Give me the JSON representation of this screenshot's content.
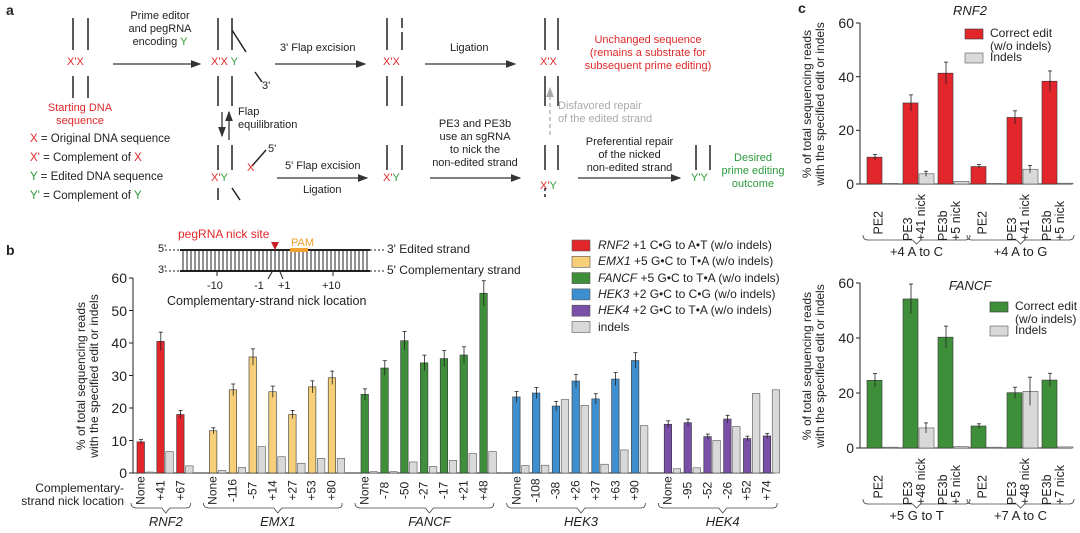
{
  "panel_a": {
    "label": "a",
    "start_label": "Starting DNA\nsequence",
    "step1": "Prime editor\nand pegRNA\nencoding",
    "step1_y": "Y",
    "flap3": "3' Flap excision",
    "three_prime": "3'",
    "five_prime": "5'",
    "ligation": "Ligation",
    "unchanged": "Unchanged sequence\n(remains a substrate for\nsubsequent prime editing)",
    "equilibration": "Flap\nequilibration",
    "disfavored": "Disfavored repair\nof the edited strand",
    "flap5": "5' Flap excision",
    "ligation2": "Ligation",
    "pe3_text": "PE3 and PE3b\nuse an sgRNA\nto nick the\nnon-edited strand",
    "preferential": "Preferential repair\nof the nicked\nnon-edited strand",
    "desired": "Desired\nprime editing\noutcome",
    "letters": {
      "x": "X",
      "xp": "X'",
      "y": "Y",
      "yp": "Y'"
    },
    "legend": [
      {
        "sym": "X",
        "text": " = Original DNA sequence"
      },
      {
        "sym": "X'",
        "text": " = Complement of ",
        "ref": "X"
      },
      {
        "sym": "Y",
        "text": " = Edited DNA sequence"
      },
      {
        "sym": "Y'",
        "text": " = Complement of ",
        "ref": "Y"
      }
    ]
  },
  "panel_b": {
    "label": "b",
    "nick_site": "pegRNA nick site",
    "pam": "PAM",
    "edited_strand": "3' Edited strand",
    "comp_strand": "5' Complementary strand",
    "five": "5'",
    "three": "3'",
    "ticks": [
      "-10",
      "-1",
      "+1",
      "+10"
    ],
    "nick_axis": "Complementary-strand nick location",
    "row_label": "Complementary-\nstrand nick location"
  },
  "panel_c": {
    "label": "c"
  },
  "colors": {
    "RNF2": "#e3262b",
    "EMX1": "#f7cf78",
    "FANCF": "#3f8f3a",
    "HEK3": "#3d8fd0",
    "HEK4": "#7a4fa8",
    "indels": "#d9d9d9"
  },
  "chart_data": [
    {
      "type": "bar",
      "title": "",
      "ylabel": "% of total sequencing reads\nwith the specified edit or indels",
      "ylim": [
        0,
        60
      ],
      "yticks": [
        "0",
        "10",
        "20",
        "30",
        "40",
        "50",
        "60"
      ],
      "legend": [
        {
          "gene": "RNF2",
          "text": " +1 C•G to A•T (w/o indels)"
        },
        {
          "gene": "EMX1",
          "text": " +5 G•C to T•A (w/o indels)"
        },
        {
          "gene": "FANCF",
          "text": " +5 G•C to T•A (w/o indels)"
        },
        {
          "gene": "HEK3",
          "text": " +2 G•C to C•G (w/o indels)"
        },
        {
          "gene": "HEK4",
          "text": " +2 G•C to T•A (w/o indels)"
        },
        {
          "gene": "indels",
          "text": "indels"
        }
      ],
      "groups": [
        {
          "gene": "RNF2",
          "categories": [
            "None",
            "+41",
            "+67"
          ],
          "edit": [
            9.6,
            40.5,
            18.0
          ],
          "indels": [
            0.3,
            6.6,
            2.2
          ]
        },
        {
          "gene": "EMX1",
          "categories": [
            "None",
            "-116",
            "-57",
            "+14",
            "+27",
            "+53",
            "+80"
          ],
          "edit": [
            13.0,
            25.6,
            35.7,
            25.0,
            18.0,
            26.5,
            29.3
          ],
          "indels": [
            0.8,
            1.7,
            8.1,
            5.0,
            3.0,
            4.5,
            4.5
          ]
        },
        {
          "gene": "FANCF",
          "categories": [
            "None",
            "-78",
            "-50",
            "-27",
            "-17",
            "+21",
            "+48"
          ],
          "edit": [
            24.2,
            32.3,
            40.7,
            33.9,
            35.2,
            36.3,
            55.3
          ],
          "indels": [
            0.4,
            0.4,
            3.4,
            2.0,
            3.9,
            6.0,
            6.6
          ]
        },
        {
          "gene": "HEK3",
          "categories": [
            "None",
            "-108",
            "-38",
            "+26",
            "+37",
            "+63",
            "+90"
          ],
          "edit": [
            23.4,
            24.6,
            20.6,
            28.3,
            22.8,
            28.9,
            34.6
          ],
          "indels": [
            2.3,
            2.4,
            22.6,
            20.8,
            2.7,
            7.1,
            14.6
          ]
        },
        {
          "gene": "HEK4",
          "categories": [
            "None",
            "-95",
            "-52",
            "-26",
            "+52",
            "+74"
          ],
          "edit": [
            15.0,
            15.5,
            11.2,
            16.6,
            10.6,
            11.4
          ],
          "indels": [
            1.3,
            1.6,
            10.0,
            14.3,
            24.5,
            25.6
          ]
        }
      ]
    },
    {
      "type": "bar",
      "title": "RNF2",
      "color": "#e3262b",
      "ylabel": "% of total sequencing reads\nwith the specified edit or indels",
      "ylim": [
        0,
        60
      ],
      "yticks": [
        "0",
        "20",
        "40",
        "60"
      ],
      "legend": [
        "Correct edit\n(w/o indels)",
        "Indels"
      ],
      "groups": [
        {
          "label": "+4 A to C",
          "categories": [
            "PE2",
            "PE3\n+41 nick",
            "PE3b\n+5 nick"
          ],
          "edit": [
            10.0,
            30.2,
            41.3
          ],
          "indels": [
            0.2,
            3.8,
            1.0
          ]
        },
        {
          "label": "+4 A to G",
          "categories": [
            "PE2",
            "PE3\n+41 nick",
            "PE3b\n+5 nick"
          ],
          "edit": [
            6.5,
            24.8,
            38.3
          ],
          "indels": [
            0.2,
            5.5,
            0.3
          ]
        }
      ]
    },
    {
      "type": "bar",
      "title": "FANCF",
      "color": "#3f8f3a",
      "ylabel": "% of total sequencing reads\nwith the specified edit or indels",
      "ylim": [
        0,
        60
      ],
      "yticks": [
        "0",
        "20",
        "40",
        "60"
      ],
      "legend": [
        "Correct edit\n(w/o indels)",
        "Indels"
      ],
      "groups": [
        {
          "label": "+5 G to T",
          "categories": [
            "PE2",
            "PE3\n+48 nick",
            "PE3b\n+5 nick"
          ],
          "edit": [
            24.6,
            54.2,
            40.3
          ],
          "indels": [
            0.3,
            7.3,
            0.5
          ]
        },
        {
          "label": "+7 A to C",
          "categories": [
            "PE2",
            "PE3\n+48 nick",
            "PE3b\n+7 nick"
          ],
          "edit": [
            8.0,
            20.1,
            24.7
          ],
          "indels": [
            0.3,
            20.6,
            0.4
          ]
        }
      ]
    }
  ]
}
